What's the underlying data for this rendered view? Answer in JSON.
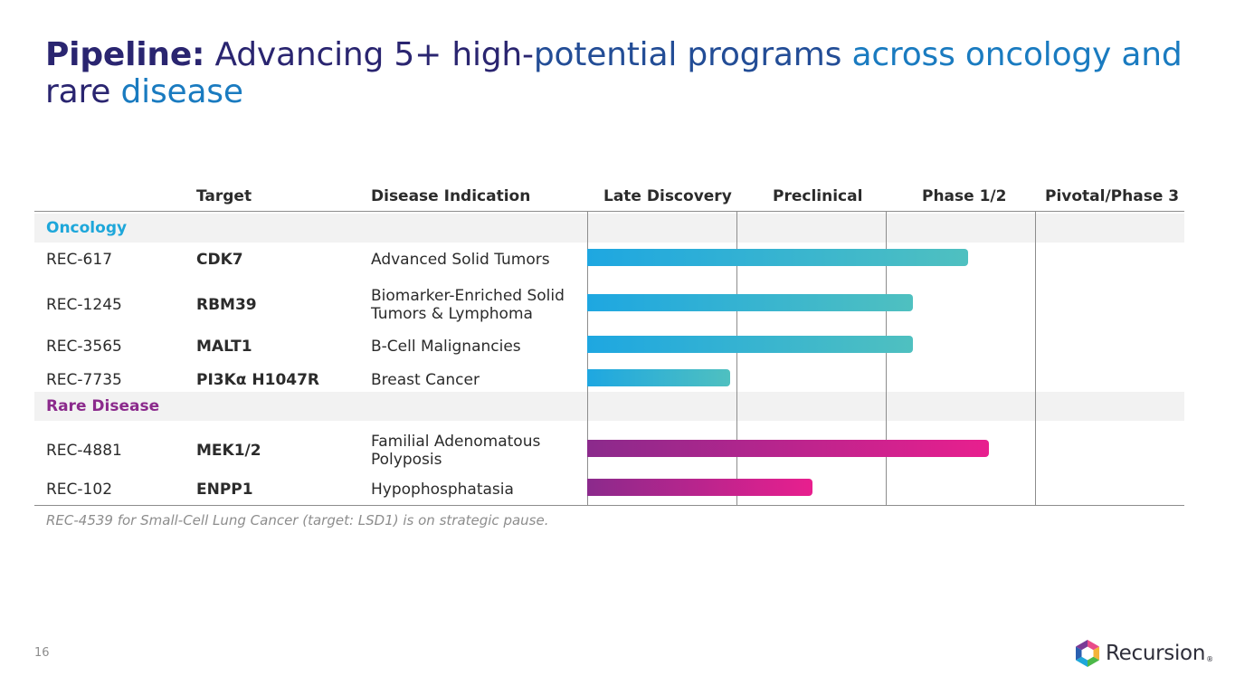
{
  "title": {
    "bold": "Pipeline:",
    "part1": "Advancing 5+ high-",
    "part2": "potential programs",
    "part3": "across oncology and",
    "part4": "rare",
    "part5": "disease"
  },
  "table": {
    "headers": [
      "Target",
      "Disease Indication",
      "Late Discovery",
      "Preclinical",
      "Phase 1/2",
      "Pivotal/Phase 3"
    ],
    "categories": [
      {
        "name": "Oncology",
        "color": "#1ea7da",
        "rows": [
          {
            "program": "REC-617",
            "target": "CDK7",
            "indication": "Advanced Solid Tumors",
            "progress": 2.55
          },
          {
            "program": "REC-1245",
            "target": "RBM39",
            "indication": "Biomarker-Enriched Solid Tumors & Lymphoma",
            "progress": 2.18
          },
          {
            "program": "REC-3565",
            "target": "MALT1",
            "indication": "B-Cell Malignancies",
            "progress": 2.18
          },
          {
            "program": "REC-7735",
            "target": "PI3Kα H1047R",
            "indication": "Breast Cancer",
            "progress": 0.96
          }
        ]
      },
      {
        "name": "Rare Disease",
        "color": "#8b2a8c",
        "rows": [
          {
            "program": "REC-4881",
            "target": "MEK1/2",
            "indication": "Familial Adenomatous Polyposis",
            "progress": 2.69
          },
          {
            "program": "REC-102",
            "target": "ENPP1",
            "indication": "Hypophosphatasia",
            "progress": 1.51
          }
        ]
      }
    ]
  },
  "footnote": "REC-4539 for Small-Cell Lung Cancer (target: LSD1) is on strategic pause.",
  "page_number": "16",
  "logo": {
    "text": "Recursion",
    "reg": "®"
  },
  "colors": {
    "oncology_bar_start": "#1ea7e1",
    "oncology_bar_end": "#4fc0c0",
    "rare_bar_start": "#8b2a8c",
    "rare_bar_end": "#e81f8e"
  }
}
